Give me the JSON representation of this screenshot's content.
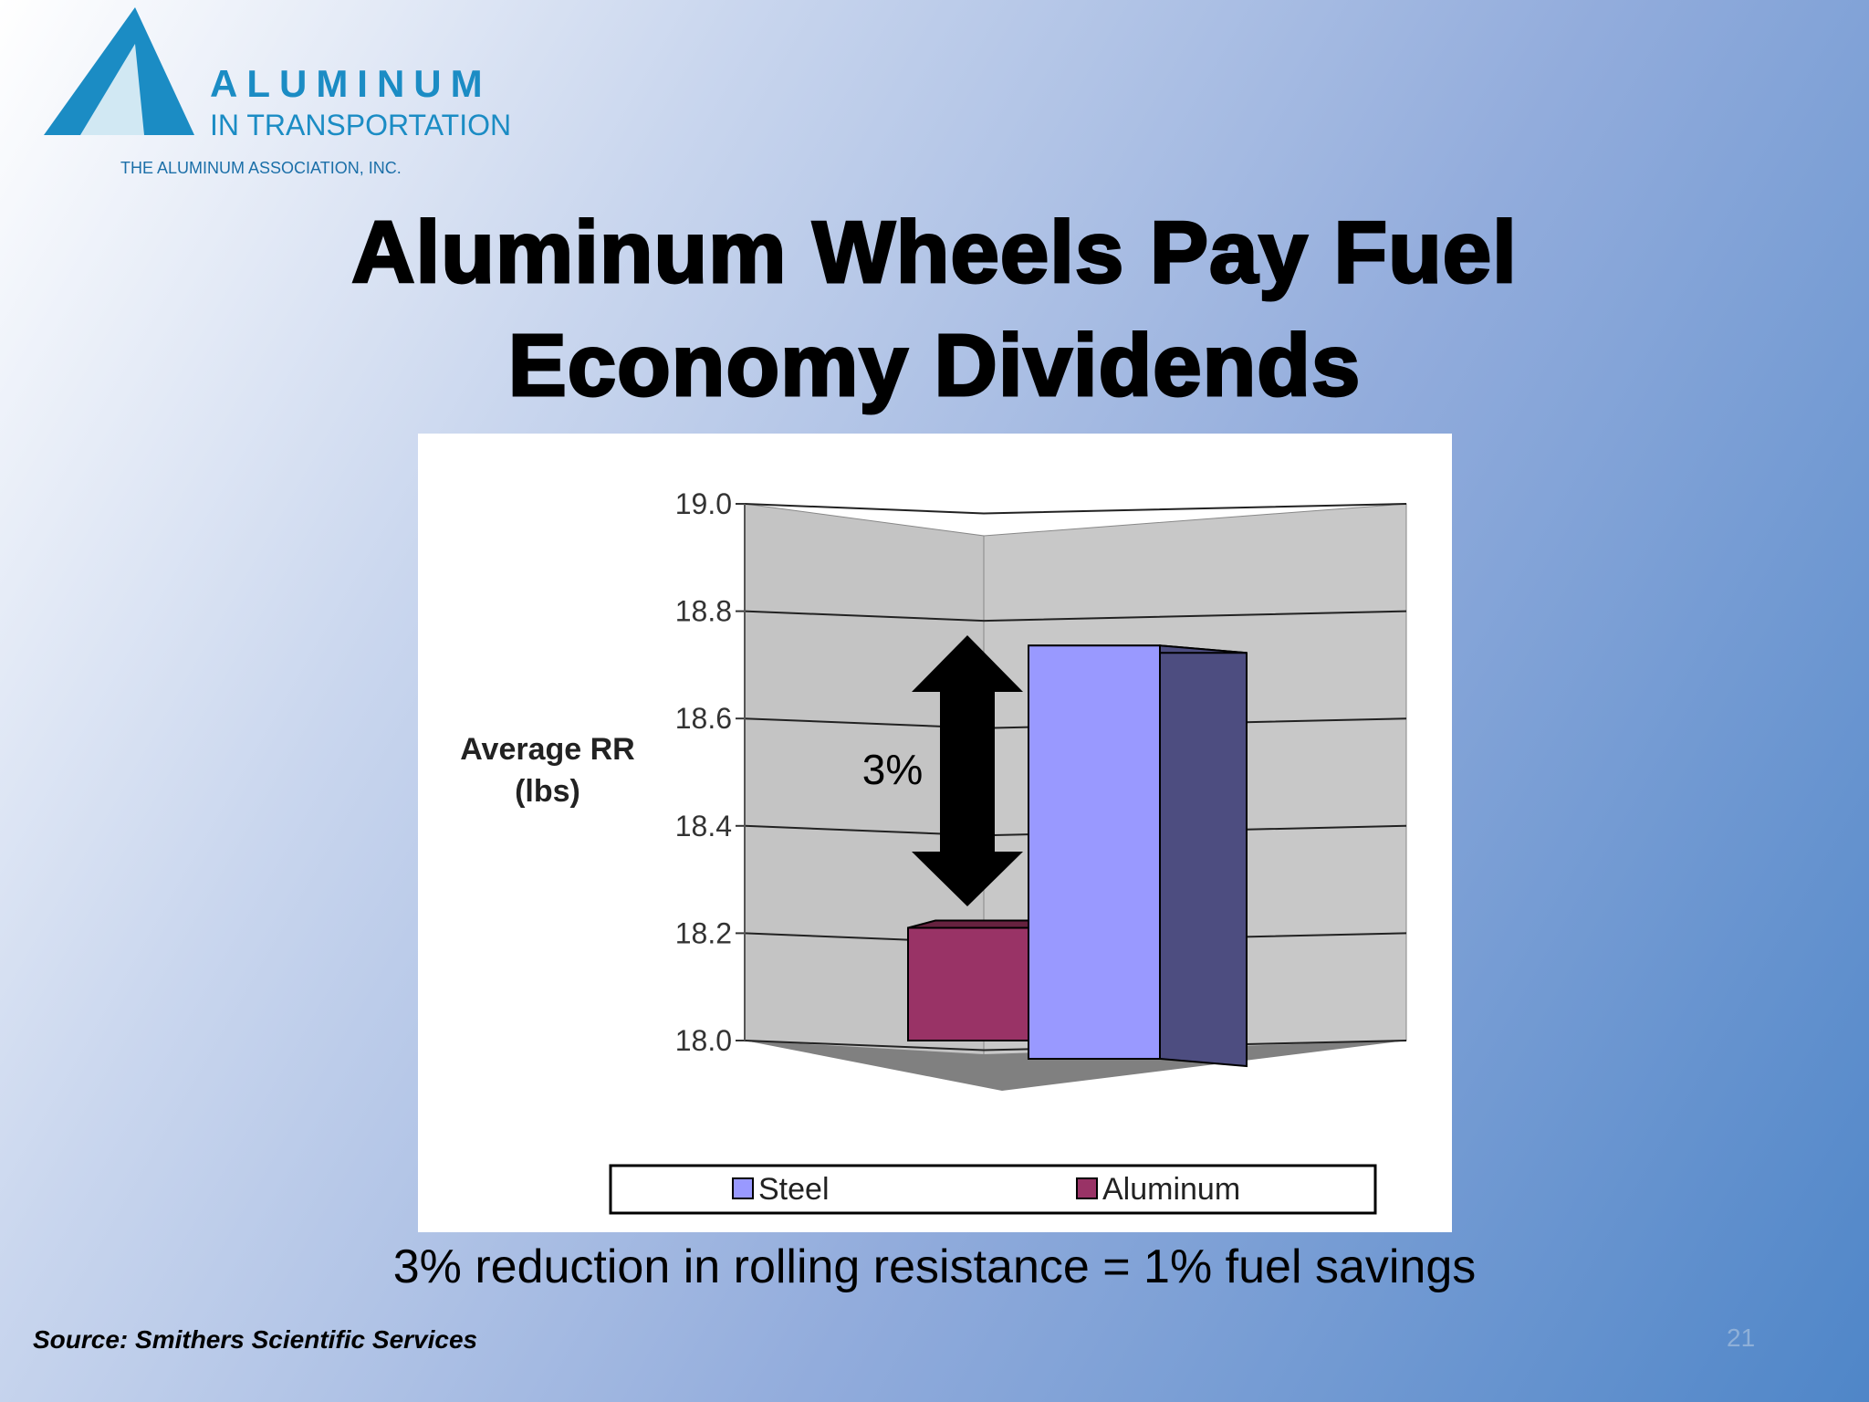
{
  "header": {
    "logo_line1": "ALUMINUM",
    "logo_line2": "IN TRANSPORTATION",
    "logo_line3": "THE ALUMINUM ASSOCIATION, INC."
  },
  "title": "Aluminum Wheels Pay Fuel Economy Dividends",
  "chart_data": {
    "type": "bar3d",
    "ylabel": "Average RR (lbs)",
    "categories": [
      null
    ],
    "series": [
      {
        "name": "Steel",
        "color": "#9999ff",
        "side_color": "#4d4d80",
        "values": [
          18.77
        ]
      },
      {
        "name": "Aluminum",
        "color": "#993366",
        "side_color": "#66223f",
        "values": [
          18.21
        ]
      }
    ],
    "ylim": [
      18.0,
      19.0
    ],
    "yticks": [
      {
        "value": 18.0,
        "label": "18.0"
      },
      18.2,
      18.4,
      18.6,
      18.8,
      {
        "value": 19.0,
        "label": "19.0"
      }
    ],
    "grid": true,
    "annotation": "3%",
    "legend": "bottom"
  },
  "caption": "3% reduction in rolling resistance = 1% fuel savings",
  "source": "Source: Smithers Scientific Services",
  "page_number": "21"
}
